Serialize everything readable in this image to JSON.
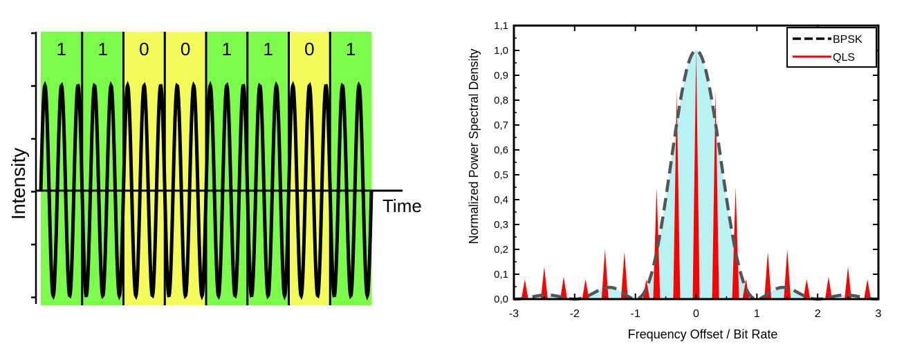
{
  "chart_data": [
    {
      "type": "line",
      "ylabel": "Intensity",
      "xlabel": "Time",
      "bits": [
        "1",
        "1",
        "0",
        "0",
        "1",
        "1",
        "0",
        "1"
      ],
      "cycles_per_bit": 2.5,
      "colors": {
        "bit_1": "#7cfc4a",
        "bit_0": "#f2fb5a",
        "waveform": "#000000"
      }
    },
    {
      "type": "line",
      "xlabel": "Frequency Offset / Bit Rate",
      "ylabel": "Normalized Power Spectral Density",
      "xlim": [
        -3,
        3
      ],
      "ylim": [
        0,
        1.1
      ],
      "x_ticks": [
        "-3",
        "-2",
        "-1",
        "0",
        "1",
        "2",
        "3"
      ],
      "y_ticks": [
        "0,0",
        "0,1",
        "0,2",
        "0,3",
        "0,4",
        "0,5",
        "0,6",
        "0,7",
        "0,8",
        "0,9",
        "1,0",
        "1,1"
      ],
      "legend_position": "top-right",
      "series": [
        {
          "name": "BPSK",
          "color": "#555555",
          "style": "dashed",
          "fill_color": "#b8f2f2",
          "formula": "sinc^2(x)"
        },
        {
          "name": "QLS",
          "color": "#ff0000",
          "style": "spikes",
          "x": [
            -2.82,
            -2.5,
            -2.18,
            -1.82,
            -1.5,
            -1.18,
            -0.82,
            -0.65,
            -0.32,
            0,
            0.32,
            0.65,
            0.82,
            1.18,
            1.5,
            1.82,
            2.18,
            2.5,
            2.82
          ],
          "y": [
            0.08,
            0.13,
            0.09,
            0.08,
            0.2,
            0.19,
            0.08,
            0.45,
            0.84,
            1.0,
            0.84,
            0.45,
            0.08,
            0.19,
            0.2,
            0.08,
            0.09,
            0.13,
            0.08
          ]
        }
      ]
    }
  ]
}
